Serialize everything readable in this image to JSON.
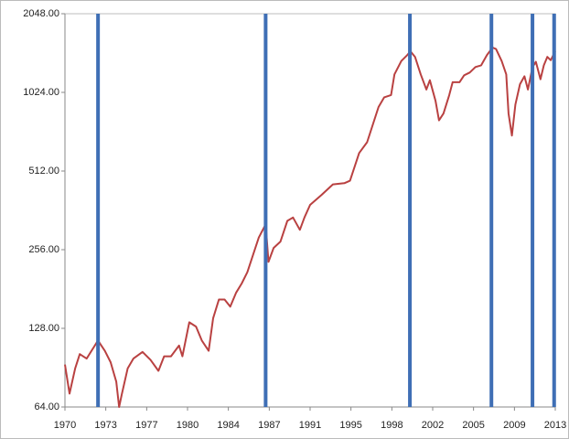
{
  "chart_data": {
    "type": "line",
    "color": "#b94141",
    "x": [
      1970.0,
      1970.4,
      1970.9,
      1971.3,
      1971.9,
      1972.5,
      1972.9,
      1973.5,
      1974.0,
      1974.5,
      1974.75,
      1975.0,
      1975.5,
      1976.0,
      1976.8,
      1977.5,
      1978.2,
      1978.7,
      1979.3,
      1980.0,
      1980.3,
      1980.9,
      1981.5,
      1982.0,
      1982.6,
      1983.0,
      1983.5,
      1984.0,
      1984.5,
      1985.0,
      1985.5,
      1986.0,
      1986.5,
      1987.0,
      1987.6,
      1987.85,
      1988.3,
      1988.9,
      1989.5,
      1990.0,
      1990.6,
      1991.0,
      1991.5,
      1992.5,
      1993.5,
      1994.5,
      1995.0,
      1995.8,
      1996.5,
      1997.5,
      1998.0,
      1998.6,
      1998.9,
      1999.5,
      2000.0,
      2000.3,
      2000.7,
      2001.2,
      2001.7,
      2002.0,
      2002.5,
      2002.8,
      2003.2,
      2003.7,
      2004.0,
      2004.6,
      2005.0,
      2005.5,
      2006.0,
      2006.5,
      2007.0,
      2007.5,
      2007.8,
      2008.3,
      2008.7,
      2008.9,
      2009.2,
      2009.5,
      2009.9,
      2010.3,
      2010.6,
      2011.0,
      2011.3,
      2011.7,
      2012.0,
      2012.3,
      2012.6,
      2013.0
    ],
    "values": [
      93,
      72,
      90,
      102,
      98,
      108,
      115,
      105,
      95,
      80,
      64,
      72,
      90,
      98,
      104,
      97,
      88,
      100,
      100,
      110,
      100,
      135,
      130,
      115,
      105,
      140,
      165,
      165,
      155,
      175,
      190,
      210,
      245,
      285,
      320,
      230,
      260,
      275,
      330,
      340,
      305,
      340,
      380,
      415,
      455,
      460,
      470,
      600,
      660,
      900,
      980,
      1000,
      1200,
      1350,
      1420,
      1470,
      1400,
      1200,
      1050,
      1140,
      950,
      800,
      850,
      1000,
      1120,
      1120,
      1190,
      1220,
      1280,
      1300,
      1420,
      1520,
      1500,
      1350,
      1200,
      850,
      700,
      920,
      1100,
      1180,
      1050,
      1280,
      1340,
      1150,
      1300,
      1400,
      1360,
      1470
    ],
    "xlim": [
      1970,
      2013
    ],
    "xticks": [
      {
        "value": 1970,
        "label": "1970"
      },
      {
        "value": 1973.58,
        "label": "1973"
      },
      {
        "value": 1977.17,
        "label": "1977"
      },
      {
        "value": 1980.75,
        "label": "1980"
      },
      {
        "value": 1984.33,
        "label": "1984"
      },
      {
        "value": 1987.92,
        "label": "1987"
      },
      {
        "value": 1991.5,
        "label": "1991"
      },
      {
        "value": 1995.08,
        "label": "1995"
      },
      {
        "value": 1998.67,
        "label": "1998"
      },
      {
        "value": 2002.25,
        "label": "2002"
      },
      {
        "value": 2005.83,
        "label": "2005"
      },
      {
        "value": 2009.42,
        "label": "2009"
      },
      {
        "value": 2013,
        "label": "2013"
      }
    ],
    "ylim": [
      64,
      2048
    ],
    "ylog": true,
    "yticks": [
      {
        "value": 64,
        "label": "64.00"
      },
      {
        "value": 128,
        "label": "128.00"
      },
      {
        "value": 256,
        "label": "256.00"
      },
      {
        "value": 512,
        "label": "512.00"
      },
      {
        "value": 1024,
        "label": "1024.00"
      },
      {
        "value": 2048,
        "label": "2048.00"
      }
    ],
    "vlines": [
      1972.9,
      1987.6,
      2000.25,
      2007.4,
      2011.0,
      2012.9
    ],
    "vline_color": "#3f6fb5"
  }
}
